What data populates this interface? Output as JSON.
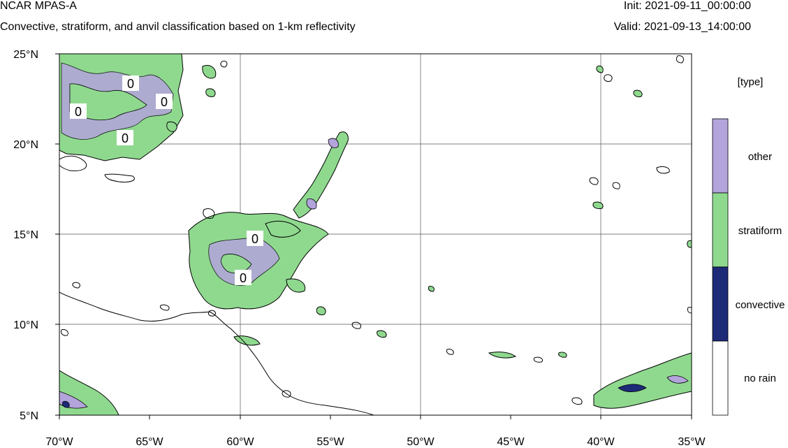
{
  "header": {
    "title": "NCAR MPAS-A",
    "subtitle": "Convective, stratiform, and anvil classification based on 1-km reflectivity",
    "init": "Init: 2021-09-11_00:00:00",
    "valid": "Valid: 2021-09-13_14:00:00"
  },
  "map": {
    "lon_range": [
      -70,
      -35
    ],
    "lat_range": [
      5,
      25
    ],
    "gridlines": true,
    "lon_ticks": [
      "70°W",
      "65°W",
      "60°W",
      "55°W",
      "50°W",
      "45°W",
      "40°W",
      "35°W"
    ],
    "lat_ticks": [
      "5°N",
      "10°N",
      "15°N",
      "20°N",
      "25°N"
    ],
    "contour_labels": [
      "0",
      "0",
      "0",
      "0",
      "0",
      "0"
    ]
  },
  "legend": {
    "title": "[type]",
    "items": [
      {
        "label": "other",
        "color": "#b3a4db"
      },
      {
        "label": "stratiform",
        "color": "#8fd98f"
      },
      {
        "label": "convective",
        "color": "#1c2a78"
      },
      {
        "label": "no rain",
        "color": "#ffffff"
      }
    ]
  }
}
